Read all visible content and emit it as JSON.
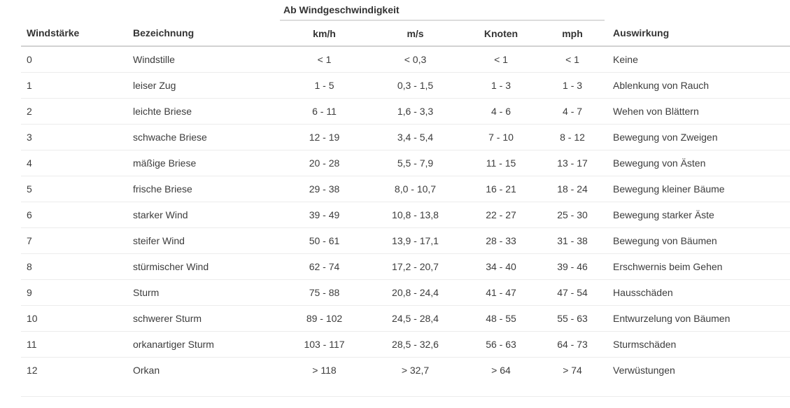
{
  "table": {
    "group_header": "Ab Windgeschwindigkeit",
    "columns": [
      "Windstärke",
      "Bezeichnung",
      "km/h",
      "m/s",
      "Knoten",
      "mph",
      "Auswirkung"
    ],
    "rows": [
      [
        "0",
        "Windstille",
        "< 1",
        "< 0,3",
        "< 1",
        "< 1",
        "Keine"
      ],
      [
        "1",
        "leiser Zug",
        "1 - 5",
        "0,3 - 1,5",
        "1 - 3",
        "1 - 3",
        "Ablenkung von Rauch"
      ],
      [
        "2",
        "leichte Briese",
        "6 - 11",
        "1,6 - 3,3",
        "4 - 6",
        "4 - 7",
        "Wehen von Blättern"
      ],
      [
        "3",
        "schwache Briese",
        "12 - 19",
        "3,4 - 5,4",
        "7 - 10",
        "8 - 12",
        "Bewegung von Zweigen"
      ],
      [
        "4",
        "mäßige Briese",
        "20 - 28",
        "5,5 - 7,9",
        "11 - 15",
        "13 - 17",
        "Bewegung von Ästen"
      ],
      [
        "5",
        "frische Briese",
        "29 - 38",
        "8,0 - 10,7",
        "16 - 21",
        "18 - 24",
        "Bewegung kleiner Bäume"
      ],
      [
        "6",
        "starker Wind",
        "39 - 49",
        "10,8 - 13,8",
        "22 - 27",
        "25 - 30",
        "Bewegung starker Äste"
      ],
      [
        "7",
        "steifer Wind",
        "50 - 61",
        "13,9 - 17,1",
        "28 - 33",
        "31 - 38",
        "Bewegung von Bäumen"
      ],
      [
        "8",
        "stürmischer Wind",
        "62 - 74",
        "17,2 - 20,7",
        "34 - 40",
        "39 - 46",
        "Erschwernis beim Gehen"
      ],
      [
        "9",
        "Sturm",
        "75 - 88",
        "20,8 - 24,4",
        "41 - 47",
        "47 - 54",
        "Hausschäden"
      ],
      [
        "10",
        "schwerer Sturm",
        "89 - 102",
        "24,5 - 28,4",
        "48 - 55",
        "55 - 63",
        "Entwurzelung von Bäumen"
      ],
      [
        "11",
        "orkanartiger Sturm",
        "103 - 117",
        "28,5 - 32,6",
        "56 - 63",
        "64 - 73",
        "Sturmschäden"
      ],
      [
        "12",
        "Orkan",
        "> 118",
        "> 32,7",
        "> 64",
        "> 74",
        "Verwüstungen"
      ]
    ],
    "colors": {
      "background": "#ffffff",
      "header_text": "#333333",
      "body_text": "#3c3c3c",
      "header_border": "#d2d2d2",
      "group_border": "#dcdcdc",
      "row_border": "#ececec"
    }
  }
}
